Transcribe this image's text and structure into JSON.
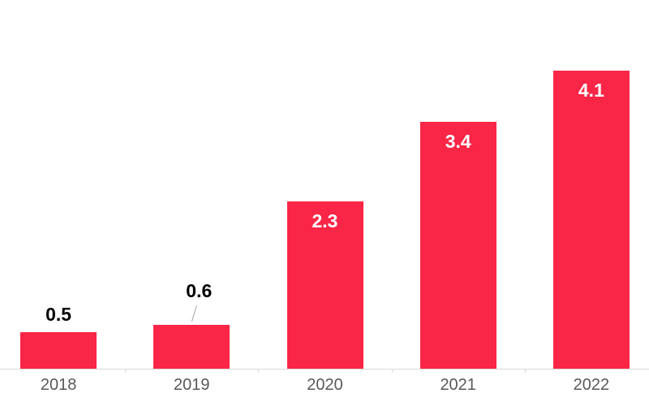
{
  "chart_data": {
    "type": "bar",
    "title": "",
    "xlabel": "",
    "ylabel": "",
    "categories": [
      "2018",
      "2019",
      "2020",
      "2021",
      "2022"
    ],
    "values": [
      0.5,
      0.6,
      2.3,
      3.4,
      4.1
    ],
    "value_labels": [
      "0.5",
      "0.6",
      "2.3",
      "3.4",
      "4.1"
    ],
    "label_placements": [
      "outside",
      "outside-callout",
      "inside",
      "inside",
      "inside"
    ],
    "ylim": [
      0,
      4.5
    ],
    "grid": false,
    "legend": false,
    "colors": {
      "bar": "#FA2647",
      "value_label_inside": "#FFFFFF",
      "value_label_outside": "#000000",
      "axis_tick_label": "#595959",
      "axis_line": "#D9D9D9",
      "leader_line": "#A6A6A6",
      "background": "#FFFFFF"
    }
  }
}
